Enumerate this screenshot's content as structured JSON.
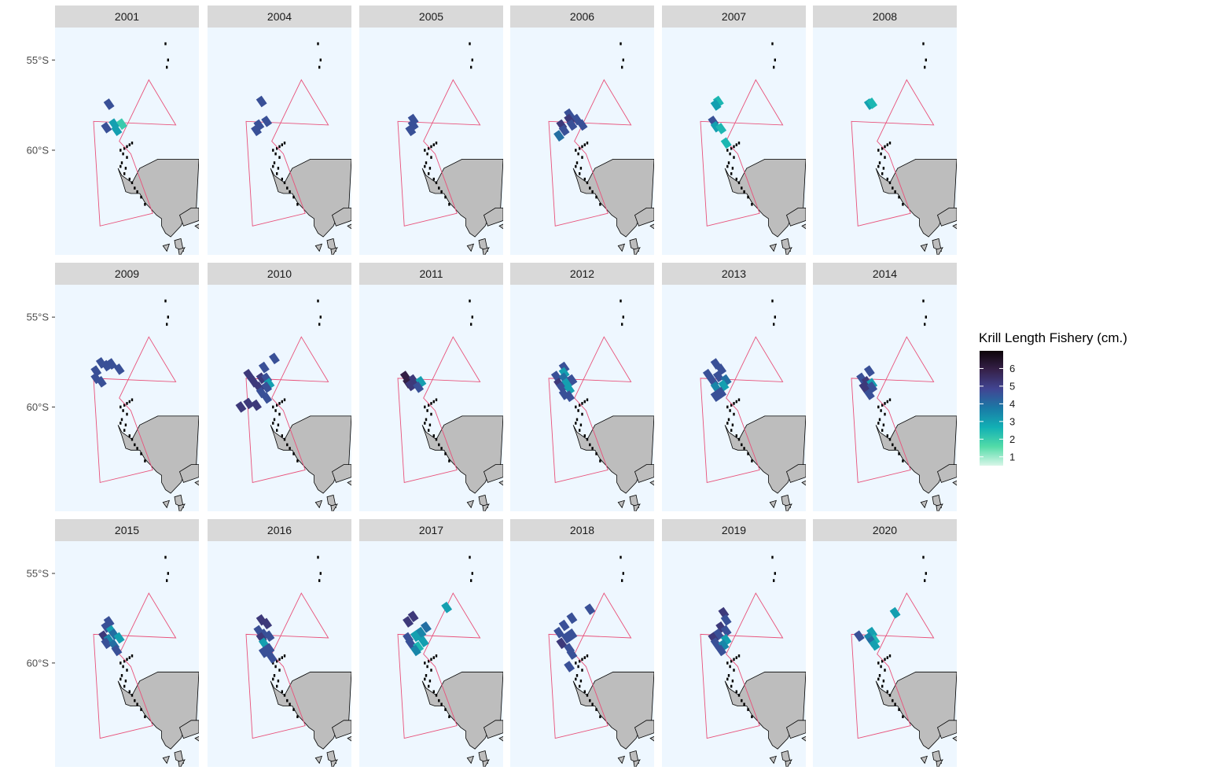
{
  "chart_data": {
    "type": "heatmap",
    "title": "",
    "xlabel": "",
    "ylabel": "",
    "y_axis_ticks": [
      "55°S",
      "60°S"
    ],
    "facets": [
      "2001",
      "2004",
      "2005",
      "2006",
      "2007",
      "2008",
      "2009",
      "2010",
      "2011",
      "2012",
      "2013",
      "2014",
      "2015",
      "2016",
      "2017",
      "2018",
      "2019",
      "2020"
    ],
    "legend": {
      "title": "Krill Length Fishery (cm.)",
      "placement": "right",
      "labels": [
        "6",
        "5",
        "4",
        "3",
        "2",
        "1"
      ],
      "colors": [
        "#0d0409",
        "#36214a",
        "#414593",
        "#1a7aa6",
        "#12b0b4",
        "#52dba8",
        "#d8f6e8"
      ]
    },
    "colors": {
      "panel_background": "#eef7ff",
      "strip_background": "#d9d9d9",
      "land_fill": "#bdbdbd",
      "boundary_line": "#e8517a"
    },
    "value_scale": {
      "min": 0.5,
      "max": 7.0
    },
    "cells": {
      "2001": [
        [
          -57.45,
          -60.0,
          4.6
        ],
        [
          -58.55,
          -59.6,
          3.0
        ],
        [
          -58.55,
          -59.0,
          2.0
        ],
        [
          -58.75,
          -60.2,
          4.6
        ],
        [
          -58.9,
          -59.4,
          3.0
        ]
      ],
      "2004": [
        [
          -57.3,
          -60.0,
          4.6
        ],
        [
          -58.4,
          -59.6,
          4.6
        ],
        [
          -58.6,
          -60.2,
          4.6
        ],
        [
          -58.9,
          -60.4,
          4.6
        ]
      ],
      "2005": [
        [
          -58.3,
          -60.0,
          4.6
        ],
        [
          -58.6,
          -60.0,
          4.6
        ],
        [
          -58.9,
          -60.2,
          4.6
        ]
      ],
      "2006": [
        [
          -58.0,
          -59.6,
          4.6
        ],
        [
          -58.3,
          -59.0,
          4.6
        ],
        [
          -58.3,
          -59.6,
          5.2
        ],
        [
          -58.6,
          -58.6,
          4.6
        ],
        [
          -58.6,
          -59.4,
          4.6
        ],
        [
          -58.6,
          -60.2,
          5.2
        ],
        [
          -58.9,
          -60.0,
          4.6
        ],
        [
          -59.2,
          -60.4,
          4.0
        ]
      ],
      "2007": [
        [
          -57.3,
          -59.8,
          2.5
        ],
        [
          -57.5,
          -60.0,
          3.0
        ],
        [
          -58.4,
          -60.2,
          4.6
        ],
        [
          -58.7,
          -60.0,
          3.0
        ],
        [
          -58.8,
          -59.6,
          2.5
        ],
        [
          -59.6,
          -59.2,
          2.5
        ]
      ],
      "2008": [
        [
          -57.45,
          -59.8,
          3.0
        ],
        [
          -57.4,
          -59.6,
          2.5
        ]
      ],
      "2009": [
        [
          -57.55,
          -60.6,
          4.6
        ],
        [
          -57.7,
          -60.2,
          4.6
        ],
        [
          -57.6,
          -59.8,
          4.6
        ],
        [
          -57.9,
          -59.2,
          4.6
        ],
        [
          -58.0,
          -61.0,
          4.6
        ],
        [
          -58.4,
          -61.0,
          4.6
        ],
        [
          -58.6,
          -60.6,
          4.6
        ]
      ],
      "2010": [
        [
          -57.3,
          -59.0,
          4.6
        ],
        [
          -57.8,
          -59.8,
          4.6
        ],
        [
          -58.2,
          -61.0,
          5.2
        ],
        [
          -58.4,
          -60.0,
          5.2
        ],
        [
          -58.4,
          -59.6,
          4.6
        ],
        [
          -58.6,
          -60.6,
          5.2
        ],
        [
          -58.7,
          -59.4,
          3.0
        ],
        [
          -58.9,
          -60.2,
          5.2
        ],
        [
          -58.9,
          -59.6,
          4.6
        ],
        [
          -59.2,
          -60.0,
          4.6
        ],
        [
          -59.5,
          -59.6,
          4.6
        ],
        [
          -59.8,
          -61.0,
          5.2
        ],
        [
          -59.9,
          -60.4,
          5.2
        ],
        [
          -60.0,
          -61.6,
          5.2
        ]
      ],
      "2011": [
        [
          -58.3,
          -60.6,
          6.0
        ],
        [
          -58.5,
          -60.0,
          5.2
        ],
        [
          -58.6,
          -59.4,
          3.0
        ],
        [
          -58.65,
          -60.4,
          6.0
        ],
        [
          -58.8,
          -60.2,
          5.2
        ],
        [
          -58.9,
          -59.6,
          4.6
        ]
      ],
      "2012": [
        [
          -57.8,
          -60.0,
          4.6
        ],
        [
          -58.1,
          -60.0,
          3.0
        ],
        [
          -58.3,
          -60.6,
          4.6
        ],
        [
          -58.4,
          -60.0,
          4.0
        ],
        [
          -58.5,
          -59.4,
          4.6
        ],
        [
          -58.7,
          -60.4,
          5.2
        ],
        [
          -58.7,
          -59.8,
          3.0
        ],
        [
          -58.9,
          -60.2,
          4.6
        ],
        [
          -59.0,
          -59.6,
          3.0
        ],
        [
          -59.3,
          -60.0,
          4.6
        ],
        [
          -59.4,
          -59.6,
          4.6
        ]
      ],
      "2013": [
        [
          -57.6,
          -60.0,
          4.6
        ],
        [
          -57.9,
          -59.6,
          4.6
        ],
        [
          -58.2,
          -60.6,
          4.6
        ],
        [
          -58.3,
          -59.8,
          4.6
        ],
        [
          -58.5,
          -59.2,
          4.0
        ],
        [
          -58.6,
          -60.2,
          4.6
        ],
        [
          -58.8,
          -59.4,
          3.0
        ],
        [
          -58.9,
          -60.0,
          3.5
        ],
        [
          -59.2,
          -59.6,
          4.6
        ],
        [
          -59.4,
          -60.0,
          4.6
        ]
      ],
      "2014": [
        [
          -58.0,
          -59.8,
          4.6
        ],
        [
          -58.4,
          -60.4,
          4.6
        ],
        [
          -58.6,
          -60.0,
          5.2
        ],
        [
          -58.7,
          -59.6,
          3.0
        ],
        [
          -58.9,
          -59.6,
          4.6
        ],
        [
          -58.9,
          -60.2,
          5.2
        ],
        [
          -59.3,
          -59.8,
          4.6
        ]
      ],
      "2015": [
        [
          -57.7,
          -60.0,
          4.6
        ],
        [
          -58.0,
          -60.2,
          4.6
        ],
        [
          -58.2,
          -59.8,
          3.0
        ],
        [
          -58.4,
          -59.6,
          4.0
        ],
        [
          -58.5,
          -60.4,
          5.2
        ],
        [
          -58.6,
          -59.2,
          3.0
        ],
        [
          -58.7,
          -60.0,
          3.5
        ],
        [
          -58.9,
          -60.2,
          4.6
        ],
        [
          -59.0,
          -59.6,
          4.0
        ],
        [
          -59.3,
          -59.4,
          4.6
        ]
      ],
      "2016": [
        [
          -57.6,
          -60.0,
          5.2
        ],
        [
          -57.8,
          -59.6,
          5.2
        ],
        [
          -58.2,
          -60.2,
          4.6
        ],
        [
          -58.4,
          -59.8,
          4.6
        ],
        [
          -58.5,
          -59.4,
          4.6
        ],
        [
          -58.6,
          -60.0,
          5.2
        ],
        [
          -58.9,
          -59.8,
          3.0
        ],
        [
          -59.2,
          -59.4,
          4.6
        ],
        [
          -59.4,
          -59.8,
          4.6
        ],
        [
          -59.7,
          -59.2,
          4.6
        ]
      ],
      "2017": [
        [
          -56.9,
          -57.4,
          3.0
        ],
        [
          -57.4,
          -60.0,
          5.2
        ],
        [
          -57.7,
          -60.4,
          5.2
        ],
        [
          -58.0,
          -59.0,
          4.0
        ],
        [
          -58.3,
          -59.4,
          3.5
        ],
        [
          -58.5,
          -59.8,
          3.0
        ],
        [
          -58.6,
          -60.4,
          4.6
        ],
        [
          -58.8,
          -59.2,
          3.0
        ],
        [
          -58.9,
          -60.2,
          4.6
        ],
        [
          -59.1,
          -59.6,
          2.5
        ],
        [
          -59.3,
          -59.8,
          3.5
        ]
      ],
      "2018": [
        [
          -57.0,
          -58.0,
          4.6
        ],
        [
          -57.5,
          -59.4,
          4.6
        ],
        [
          -57.9,
          -60.0,
          4.6
        ],
        [
          -58.3,
          -60.4,
          4.6
        ],
        [
          -58.4,
          -59.4,
          4.6
        ],
        [
          -58.6,
          -59.8,
          4.6
        ],
        [
          -58.9,
          -60.2,
          5.2
        ],
        [
          -59.2,
          -59.6,
          4.6
        ],
        [
          -59.5,
          -59.4,
          4.6
        ],
        [
          -60.2,
          -59.6,
          4.6
        ]
      ],
      "2019": [
        [
          -57.2,
          -59.4,
          5.2
        ],
        [
          -57.6,
          -59.2,
          4.6
        ],
        [
          -58.0,
          -59.6,
          5.2
        ],
        [
          -58.2,
          -59.2,
          4.6
        ],
        [
          -58.4,
          -59.8,
          4.6
        ],
        [
          -58.6,
          -60.2,
          5.2
        ],
        [
          -58.7,
          -59.2,
          3.0
        ],
        [
          -58.9,
          -60.0,
          4.6
        ],
        [
          -59.0,
          -59.4,
          3.5
        ],
        [
          -59.3,
          -59.6,
          4.6
        ]
      ],
      "2020": [
        [
          -57.2,
          -57.8,
          3.0
        ],
        [
          -58.3,
          -59.6,
          3.0
        ],
        [
          -58.5,
          -60.6,
          4.6
        ],
        [
          -58.6,
          -59.8,
          3.5
        ],
        [
          -58.7,
          -59.4,
          2.5
        ],
        [
          -58.8,
          -59.6,
          4.0
        ],
        [
          -59.0,
          -59.4,
          3.0
        ]
      ]
    }
  }
}
